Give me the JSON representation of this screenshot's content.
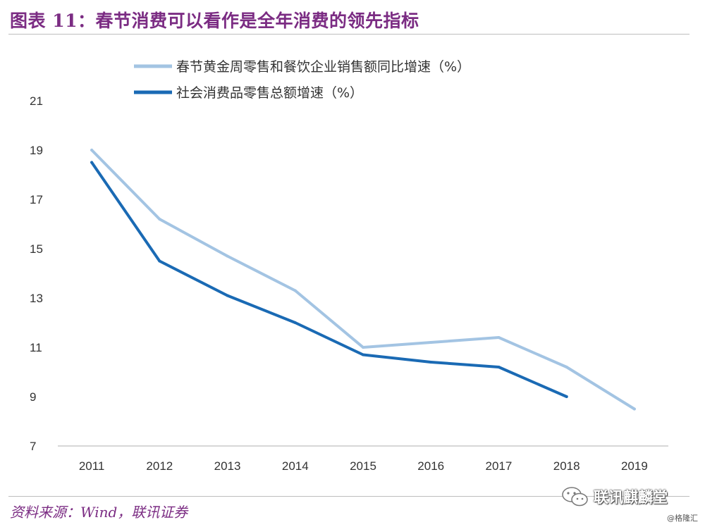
{
  "header": {
    "title": "图表 11：春节消费可以看作是全年消费的领先指标"
  },
  "footer": {
    "source": "资料来源：Wind，联讯证券",
    "watermark": "联讯麒麟堂",
    "watermark_small": "@格隆汇"
  },
  "colors": {
    "title": "#7b2c83",
    "series_light": "#a3c4e3",
    "series_dark": "#1a6ab4"
  },
  "chart_data": {
    "type": "line",
    "title": "",
    "xlabel": "",
    "ylabel": "",
    "x": [
      "2011",
      "2012",
      "2013",
      "2014",
      "2015",
      "2016",
      "2017",
      "2018",
      "2019"
    ],
    "ylim": [
      7,
      21
    ],
    "yticks": [
      7,
      9,
      11,
      13,
      15,
      17,
      19,
      21
    ],
    "legend_position": "top-left",
    "grid": false,
    "series": [
      {
        "name": "春节黄金周零售和餐饮企业销售额同比增速（%）",
        "color": "#a3c4e3",
        "values": [
          19.0,
          16.2,
          14.7,
          13.3,
          11.0,
          11.2,
          11.4,
          10.2,
          8.5
        ]
      },
      {
        "name": "社会消费品零售总额增速（%）",
        "color": "#1a6ab4",
        "values": [
          18.5,
          14.5,
          13.1,
          12.0,
          10.7,
          10.4,
          10.2,
          9.0,
          null
        ]
      }
    ]
  }
}
